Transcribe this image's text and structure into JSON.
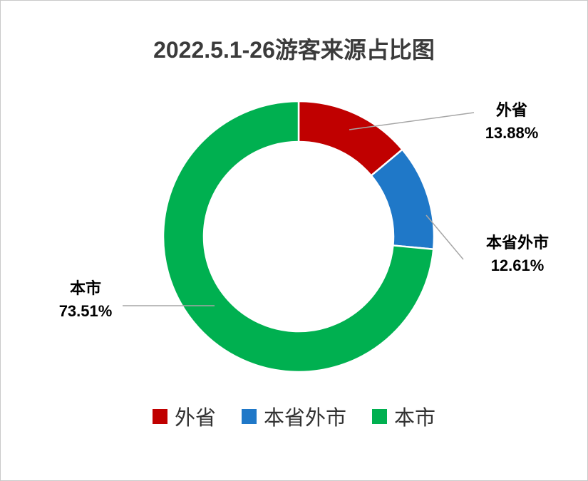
{
  "chart_data": {
    "type": "pie",
    "subtype": "donut",
    "title": "2022.5.1-26游客来源占比图",
    "categories": [
      "外省",
      "本省外市",
      "本市"
    ],
    "values": [
      13.88,
      12.61,
      73.51
    ],
    "value_labels": [
      "13.88%",
      "12.61%",
      "73.51%"
    ],
    "unit": "%",
    "colors": [
      "#c00000",
      "#1f78c8",
      "#00b050"
    ],
    "start_angle_deg": 0,
    "direction": "clockwise",
    "inner_radius_ratio": 0.7,
    "leader_line_color": "#a6a6a6",
    "legend": {
      "position": "bottom",
      "entries": [
        "外省",
        "本省外市",
        "本市"
      ]
    }
  }
}
